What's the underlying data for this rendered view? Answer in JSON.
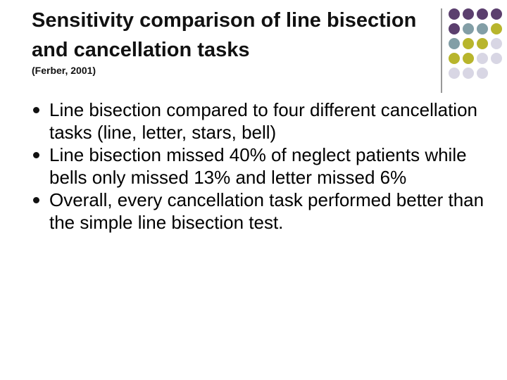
{
  "title": "Sensitivity comparison of line bisection and cancellation tasks",
  "subtitle": "(Ferber, 2001)",
  "bullets": [
    "Line bisection compared to four different cancellation tasks (line, letter, stars, bell)",
    "Line bisection missed 40% of neglect patients while bells only missed 13% and letter missed 6%",
    "Overall, every cancellation task performed better than the simple line bisection test."
  ]
}
